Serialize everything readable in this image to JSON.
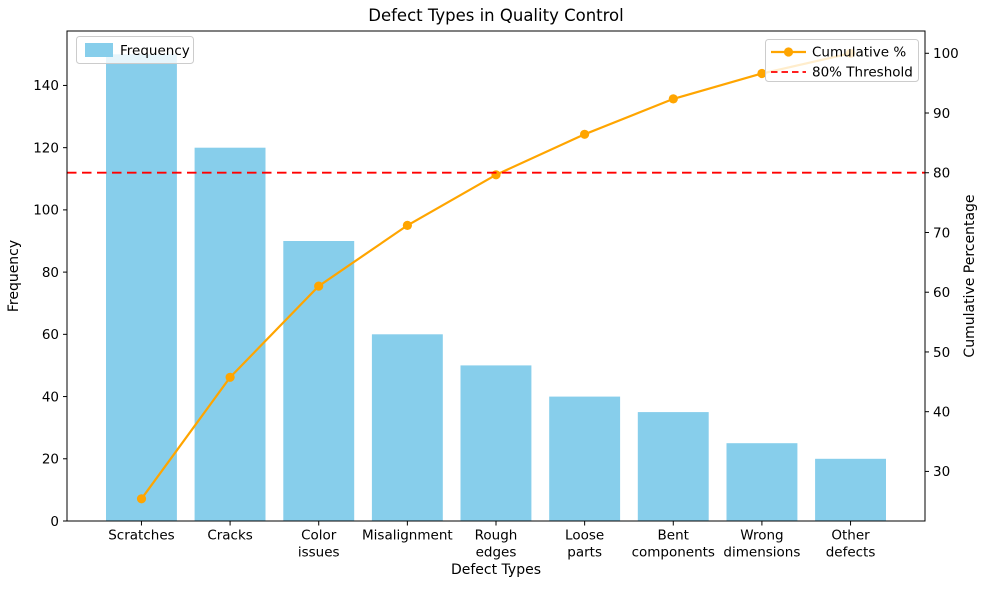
{
  "chart_data": {
    "type": "bar",
    "subtype": "pareto-bar-line-combo",
    "title": "Defect Types in Quality Control",
    "xlabel": "Defect Types",
    "ylabel_left": "Frequency",
    "ylabel_right": "Cumulative Percentage",
    "categories": [
      "Scratches",
      "Cracks",
      "Color issues",
      "Misalignment",
      "Rough edges",
      "Loose parts",
      "Bent components",
      "Wrong dimensions",
      "Other defects"
    ],
    "x_tick_lines": [
      [
        "Scratches"
      ],
      [
        "Cracks"
      ],
      [
        "Color",
        "issues"
      ],
      [
        "Misalignment"
      ],
      [
        "Rough",
        "edges"
      ],
      [
        "Loose",
        "parts"
      ],
      [
        "Bent",
        "components"
      ],
      [
        "Wrong",
        "dimensions"
      ],
      [
        "Other",
        "defects"
      ]
    ],
    "series": [
      {
        "name": "Frequency",
        "type": "bar",
        "axis": "left",
        "color": "#87CEEB",
        "values": [
          150,
          120,
          90,
          60,
          50,
          40,
          35,
          25,
          20
        ]
      },
      {
        "name": "Cumulative %",
        "type": "line",
        "axis": "right",
        "color": "#FFA500",
        "marker": "circle",
        "values": [
          25.42,
          45.76,
          61.02,
          71.19,
          79.66,
          86.44,
          92.37,
          96.61,
          100.0
        ]
      }
    ],
    "threshold": {
      "label": "80% Threshold",
      "value": 80,
      "color": "#FF0000",
      "style": "dashed",
      "axis": "right"
    },
    "axes": {
      "left": {
        "ticks": [
          0,
          20,
          40,
          60,
          80,
          100,
          120,
          140
        ],
        "lim": [
          0,
          157.5
        ]
      },
      "right": {
        "ticks": [
          30,
          40,
          50,
          60,
          70,
          80,
          90,
          100
        ],
        "lim": [
          21.7,
          103.73
        ]
      }
    },
    "legend_positions": {
      "frequency": "upper left",
      "cumulative": "upper right"
    },
    "grid": false
  }
}
